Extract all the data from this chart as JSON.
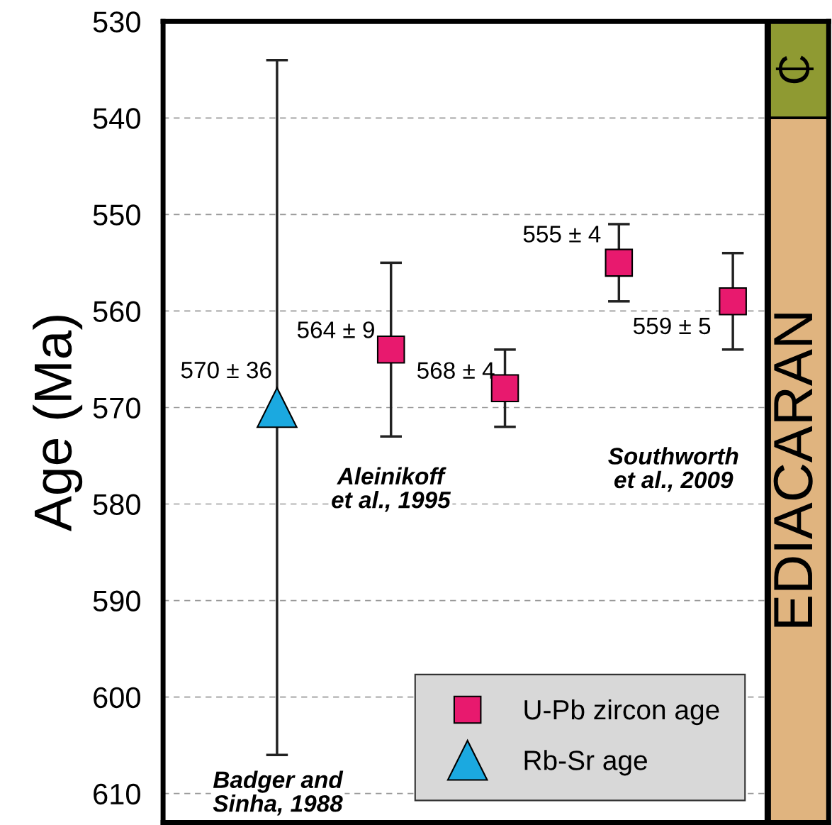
{
  "chart_data": {
    "type": "scatter",
    "ylabel": "Age (Ma)",
    "categories": [
      null,
      null,
      null,
      null,
      null
    ],
    "ylim": [
      613,
      530
    ],
    "yticks": [
      530,
      540,
      550,
      560,
      570,
      580,
      590,
      600,
      610
    ],
    "grid": "y",
    "legend": "bottom right",
    "series": [
      {
        "name": "U-Pb zircon age",
        "color": "#e8196e",
        "marker": "square",
        "values": [
          null,
          564,
          568,
          555,
          559
        ],
        "errors": [
          null,
          9,
          4,
          4,
          5
        ],
        "value_labels": [
          null,
          "564 ± 9",
          "568 ± 4",
          "555 ± 4",
          "559 ± 5"
        ]
      },
      {
        "name": "Rb-Sr age",
        "color": "#1ba9e0",
        "marker": "triangle",
        "values": [
          570,
          null,
          null,
          null,
          null
        ],
        "errors": [
          36,
          null,
          null,
          null,
          null
        ],
        "value_labels": [
          "570 ± 36",
          null,
          null,
          null,
          null
        ]
      }
    ],
    "annotations": [
      "Aleinikoff\net al., 1995",
      "Southworth\net al., 2009",
      "Badger and\nSinha, 1988"
    ],
    "bands": [
      {
        "axis": "y",
        "from": 530,
        "to": 540,
        "label": "₵",
        "color": "#8f9a32"
      },
      {
        "axis": "y",
        "from": 540,
        "to": 613,
        "label": "EDIACARAN",
        "color": "#e0b47f"
      }
    ]
  }
}
